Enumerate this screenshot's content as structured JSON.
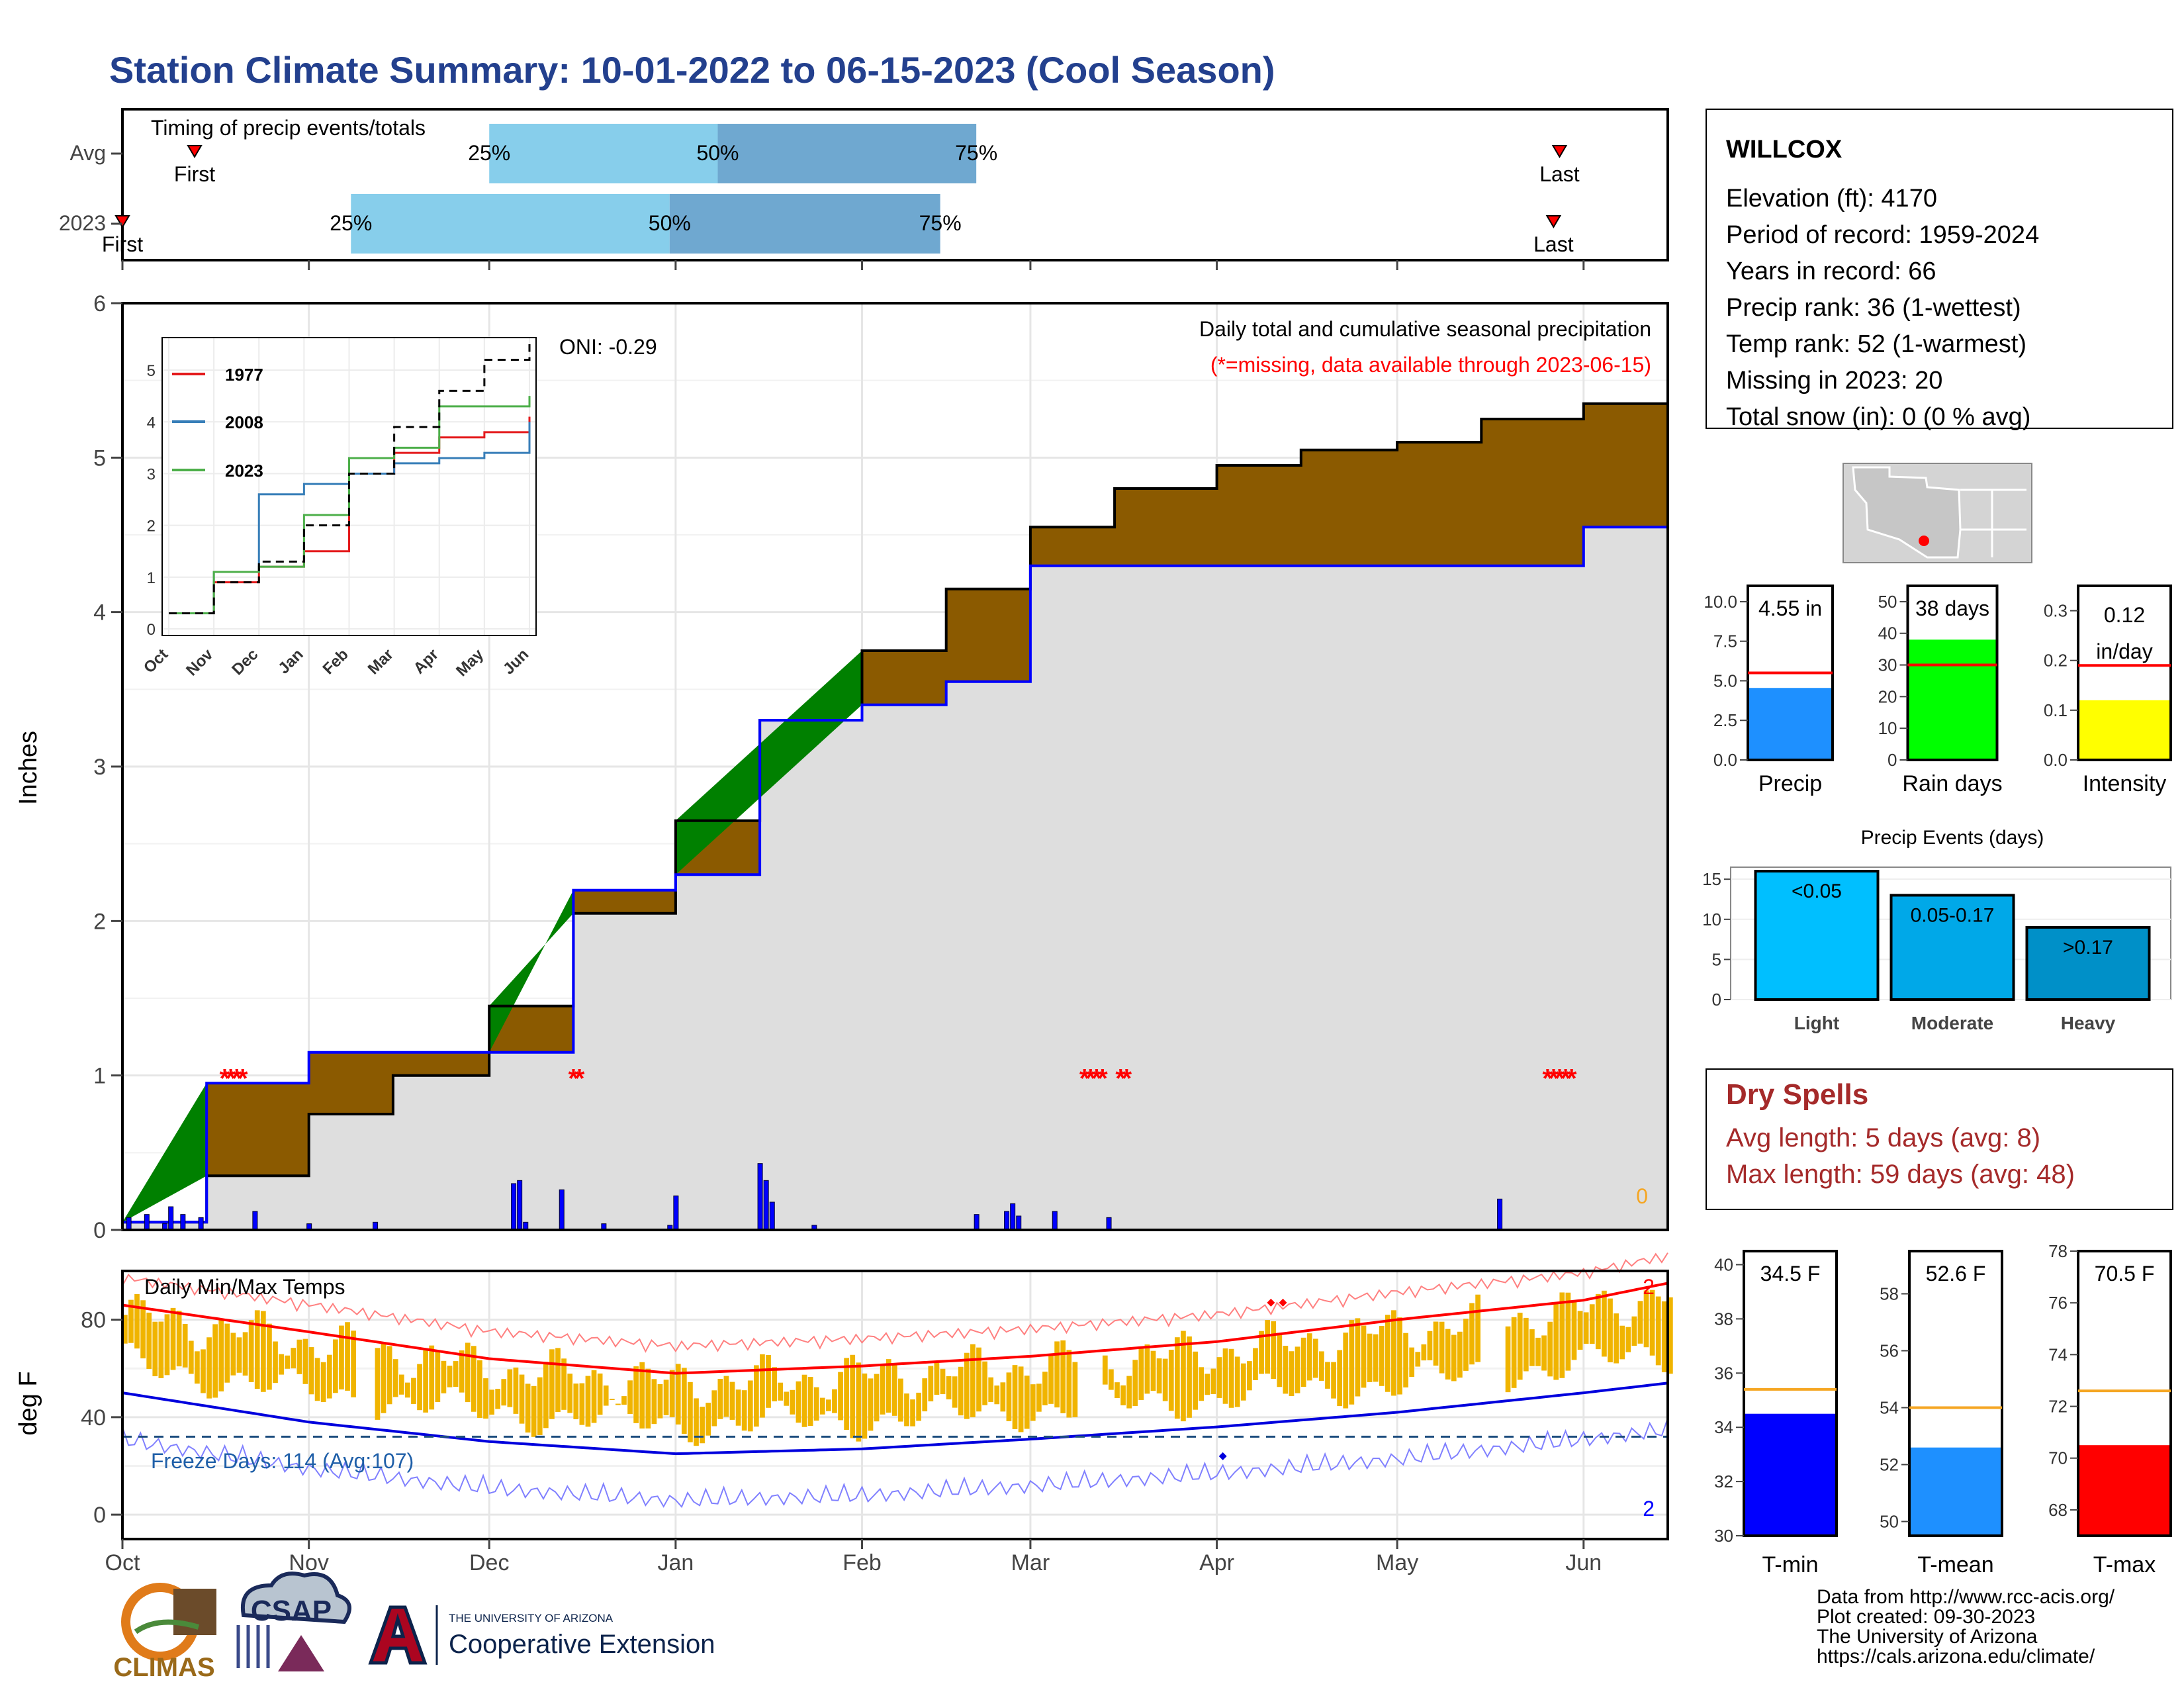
{
  "page": {
    "title": "Station Climate Summary: 10-01-2022 to 06-15-2023 (Cool Season)"
  },
  "colors": {
    "title": "#23408e",
    "brown": "#8b5a00",
    "green": "#008000",
    "blue": "#0000ff",
    "gray_fill": "#dedede",
    "light_blue": "#87ceeb",
    "mid_blue": "#6fa8d0",
    "orange": "#f0b400",
    "red": "#ff0000"
  },
  "timing": {
    "title": "Timing of precip events/totals",
    "rows": [
      {
        "label": "Avg",
        "first": "First",
        "last": "Last",
        "p25": "25%",
        "p50": "50%",
        "p75": "75%"
      },
      {
        "label": "2023",
        "first": "First",
        "last": "Last",
        "p25": "25%",
        "p50": "50%",
        "p75": "75%"
      }
    ]
  },
  "station": {
    "name": "WILLCOX",
    "elevation": "Elevation (ft): 4170",
    "period": "Period of record: 1959-2024",
    "years": "Years in record: 66",
    "precip_rank": "Precip rank: 36 (1-wettest)",
    "temp_rank": "Temp rank: 52 (1-warmest)",
    "missing": "Missing in 2023: 20",
    "snow": "Total snow (in): 0 (0 % avg)"
  },
  "precip_panel": {
    "title": "Daily total and cumulative seasonal precipitation",
    "note": "(*=missing, data available through 2023-06-15)",
    "oni": "ONI: -0.29",
    "ylabel": "Inches",
    "zero_label": "0",
    "inset_legend": [
      "1977",
      "2008",
      "2023"
    ],
    "inset_months": [
      "Oct",
      "Nov",
      "Dec",
      "Jan",
      "Feb",
      "Mar",
      "Apr",
      "May",
      "Jun"
    ]
  },
  "temp_panel": {
    "title": "Daily Min/Max Temps",
    "ylabel": "deg F",
    "freeze": "Freeze Days: 114 (Avg:107)",
    "count_top": "2",
    "count_bottom": "2"
  },
  "months": [
    "Oct",
    "Nov",
    "Dec",
    "Jan",
    "Feb",
    "Mar",
    "Apr",
    "May",
    "Jun"
  ],
  "mini_bars": {
    "precip": {
      "label": "Precip",
      "value_text": "4.55 in",
      "value": 4.55,
      "avg": 5.5
    },
    "rain_days": {
      "label": "Rain days",
      "value_text": "38 days",
      "value": 38,
      "avg": 30
    },
    "intensity": {
      "label": "Intensity",
      "value_text": "0.12",
      "value_text2": "in/day",
      "value": 0.12,
      "avg": 0.19
    }
  },
  "events": {
    "title": "Precip Events (days)",
    "bars": [
      {
        "label": "Light",
        "text": "<0.05",
        "value": 16
      },
      {
        "label": "Moderate",
        "text": "0.05-0.17",
        "value": 13
      },
      {
        "label": "Heavy",
        "text": ">0.17",
        "value": 9
      }
    ]
  },
  "dry_spells": {
    "title": "Dry Spells",
    "avg": "Avg length: 5 days (avg: 8)",
    "max": "Max length: 59 days (avg: 48)"
  },
  "temp_bars": {
    "tmin": {
      "label": "T-min",
      "value_text": "34.5 F",
      "value": 34.5,
      "avg": 35.4
    },
    "tmean": {
      "label": "T-mean",
      "value_text": "52.6 F",
      "value": 52.6,
      "avg": 54.0
    },
    "tmax": {
      "label": "T-max",
      "value_text": "70.5 F",
      "value": 70.5,
      "avg": 72.6
    }
  },
  "credits": [
    "Data from http://www.rcc-acis.org/",
    "Plot created: 09-30-2023",
    "The University of Arizona",
    "https://cals.arizona.edu/climate/"
  ],
  "logos": {
    "climas": "CLIMAS",
    "csap": "CSAP",
    "ua_small": "THE UNIVERSITY OF ARIZONA",
    "coop": "Cooperative Extension"
  },
  "chart_data": [
    {
      "type": "area",
      "name": "cumulative precipitation",
      "xlabel": "",
      "ylabel": "Inches",
      "ylim": [
        0,
        6
      ],
      "x": [
        "2022-10-01",
        "2022-10-15",
        "2022-11-01",
        "2022-11-15",
        "2022-12-01",
        "2022-12-15",
        "2023-01-01",
        "2023-01-15",
        "2023-02-01",
        "2023-02-15",
        "2023-03-01",
        "2023-03-15",
        "2023-04-01",
        "2023-04-15",
        "2023-05-01",
        "2023-05-15",
        "2023-06-01",
        "2023-06-15"
      ],
      "series": [
        {
          "name": "",
          "values": [
            0.05,
            0.95,
            1.15,
            1.15,
            1.15,
            2.2,
            2.3,
            3.3,
            3.4,
            3.55,
            4.3,
            4.3,
            4.3,
            4.3,
            4.3,
            4.3,
            4.55,
            4.55
          ]
        },
        {
          "name": "",
          "values": [
            0.05,
            0.35,
            0.75,
            1.0,
            1.45,
            2.05,
            2.65,
            3.3,
            3.75,
            4.15,
            4.55,
            4.8,
            4.95,
            5.05,
            5.1,
            5.25,
            5.35,
            5.5
          ]
        }
      ]
    },
    {
      "type": "bar",
      "name": "daily precipitation",
      "xlabel": "",
      "ylabel": "Inches",
      "x": [
        "2022-10-02",
        "2022-10-05",
        "2022-10-08",
        "2022-10-09",
        "2022-10-11",
        "2022-10-14",
        "2022-10-23",
        "2022-11-01",
        "2022-11-12",
        "2022-12-05",
        "2022-12-06",
        "2022-12-07",
        "2022-12-13",
        "2022-12-20",
        "2022-12-31",
        "2023-01-01",
        "2023-01-15",
        "2023-01-16",
        "2023-01-17",
        "2023-01-24",
        "2023-02-20",
        "2023-02-25",
        "2023-02-26",
        "2023-02-27",
        "2023-03-05",
        "2023-03-14",
        "2023-05-18"
      ],
      "values": [
        0.08,
        0.1,
        0.04,
        0.15,
        0.1,
        0.08,
        0.12,
        0.04,
        0.05,
        0.3,
        0.32,
        0.05,
        0.26,
        0.04,
        0.03,
        0.22,
        0.43,
        0.32,
        0.18,
        0.03,
        0.1,
        0.12,
        0.17,
        0.09,
        0.12,
        0.08,
        0.2
      ]
    },
    {
      "type": "line",
      "name": "daily min/max temps",
      "xlabel": "",
      "ylabel": "deg F",
      "ylim": [
        -10,
        100
      ],
      "x": [
        "2022-10-01",
        "2022-11-01",
        "2022-12-01",
        "2023-01-01",
        "2023-02-01",
        "2023-03-01",
        "2023-04-01",
        "2023-05-01",
        "2023-06-01",
        "2023-06-15"
      ],
      "series": [
        {
          "name": "",
          "values": [
            86,
            75,
            64,
            58,
            61,
            65,
            71,
            80,
            88,
            95
          ]
        },
        {
          "name": "",
          "values": [
            50,
            38,
            30,
            25,
            27,
            31,
            36,
            42,
            50,
            54
          ]
        }
      ]
    },
    {
      "type": "line",
      "name": "inset cumulative",
      "ylim": [
        0,
        5.5
      ],
      "x": [
        "Oct",
        "Nov",
        "Dec",
        "Jan",
        "Feb",
        "Mar",
        "Apr",
        "May",
        "Jun"
      ],
      "series": [
        {
          "name": "1977",
          "values": [
            0.3,
            0.9,
            1.2,
            1.5,
            3.0,
            3.4,
            3.7,
            3.8,
            4.1
          ]
        },
        {
          "name": "2008",
          "values": [
            0.3,
            1.1,
            2.6,
            2.8,
            3.0,
            3.2,
            3.3,
            3.4,
            4.0
          ]
        },
        {
          "name": "2023",
          "values": [
            0.3,
            1.1,
            1.2,
            2.2,
            3.3,
            3.5,
            4.3,
            4.3,
            4.5
          ]
        },
        {
          "name": "",
          "values": [
            0.3,
            0.9,
            1.3,
            2.0,
            3.0,
            3.9,
            4.6,
            5.2,
            5.5
          ]
        }
      ]
    },
    {
      "type": "bar",
      "name": "precip events",
      "categories": [
        "Light",
        "Moderate",
        "Heavy"
      ],
      "values": [
        16,
        13,
        9
      ],
      "ylim": [
        0,
        16
      ]
    }
  ]
}
